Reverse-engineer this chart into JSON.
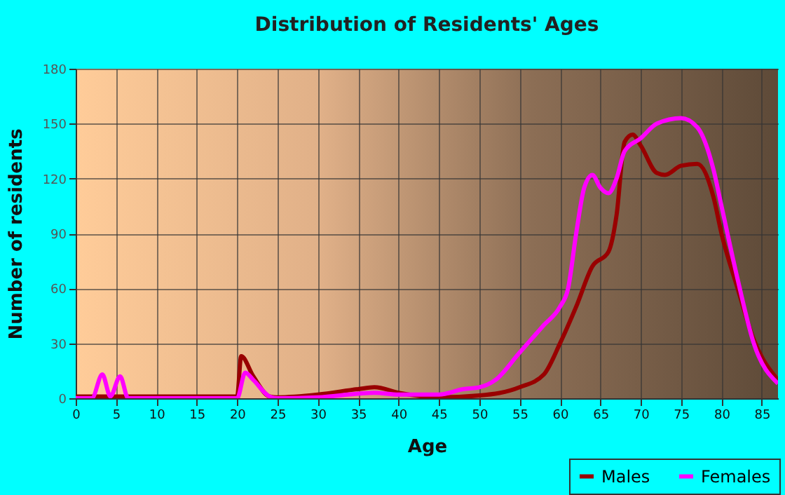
{
  "chart_data": {
    "type": "line",
    "title": "Distribution of Residents' Ages",
    "xlabel": "Age",
    "ylabel": "Number of residents",
    "xlim": [
      0,
      87
    ],
    "xticks": [
      0,
      5,
      10,
      15,
      20,
      25,
      30,
      35,
      40,
      45,
      50,
      55,
      60,
      65,
      70,
      75,
      80,
      85
    ],
    "ylim": [
      0,
      180
    ],
    "yticks": [
      0,
      30,
      60,
      90,
      120,
      150,
      180
    ],
    "grid": true,
    "legend": "bottom right",
    "series": [
      {
        "name": "Males",
        "color": "#990000",
        "x": [
          0,
          19,
          20,
          20.5,
          22,
          24,
          25,
          30,
          35,
          37,
          40,
          43,
          45,
          50,
          55,
          58,
          60,
          62,
          64,
          66,
          67,
          68,
          69,
          70,
          72,
          73,
          75,
          77,
          79,
          80,
          82,
          84,
          87
        ],
        "values": [
          1,
          1,
          1,
          23,
          12,
          1,
          0.5,
          2,
          5,
          6,
          3,
          1,
          0.5,
          1.5,
          6,
          13,
          30,
          50,
          72,
          80,
          100,
          140,
          144,
          138,
          123,
          122,
          127,
          128,
          110,
          90,
          60,
          32,
          10
        ]
      },
      {
        "name": "Females",
        "color": "#ff00ff",
        "x": [
          0,
          2,
          3.3,
          4.3,
          5.5,
          6.5,
          20,
          21,
          22,
          24,
          25,
          30,
          35,
          37,
          40,
          45,
          48,
          50,
          52,
          55,
          58,
          60,
          61,
          62,
          63,
          64,
          65,
          66,
          67,
          68,
          70,
          72,
          75,
          77,
          79,
          80,
          82,
          84,
          87
        ],
        "values": [
          0,
          0,
          13,
          1,
          12,
          0,
          0,
          14,
          10,
          1,
          0,
          0.5,
          2.5,
          3,
          2,
          2,
          5,
          6,
          10,
          25,
          40,
          50,
          60,
          90,
          115,
          122,
          115,
          112,
          120,
          135,
          142,
          150,
          153,
          148,
          125,
          105,
          65,
          30,
          8
        ]
      }
    ]
  }
}
